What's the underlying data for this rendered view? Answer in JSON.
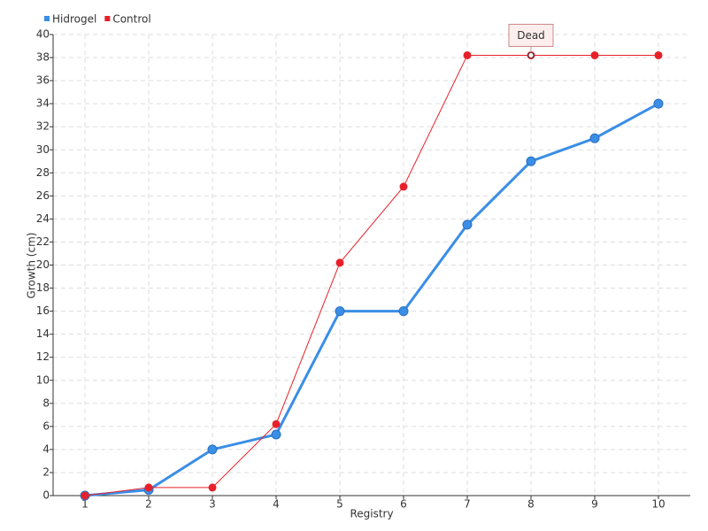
{
  "chart_data": {
    "type": "line",
    "xlabel": "Registry",
    "ylabel": "Growth (cm)",
    "categories": [
      "1",
      "2",
      "3",
      "4",
      "5",
      "6",
      "7",
      "8",
      "9",
      "10"
    ],
    "series": [
      {
        "name": "Hidrogel",
        "color": "#3a8ee6",
        "values": [
          0,
          0.5,
          4,
          5.3,
          16,
          16,
          23.5,
          29,
          31,
          34
        ]
      },
      {
        "name": "Control",
        "color": "#e8202a",
        "values": [
          0,
          0.7,
          0.7,
          6.2,
          20.2,
          26.8,
          38.2,
          38.2,
          38.2,
          38.2
        ]
      }
    ],
    "ylim": [
      0,
      40
    ],
    "yticks": [
      0,
      2,
      4,
      6,
      8,
      10,
      12,
      14,
      16,
      18,
      20,
      22,
      24,
      26,
      28,
      30,
      32,
      34,
      36,
      38,
      40
    ],
    "grid": true,
    "legend": "top-left",
    "annotations": [
      {
        "text": "Dead",
        "x": "8",
        "y": 38.2
      }
    ]
  }
}
